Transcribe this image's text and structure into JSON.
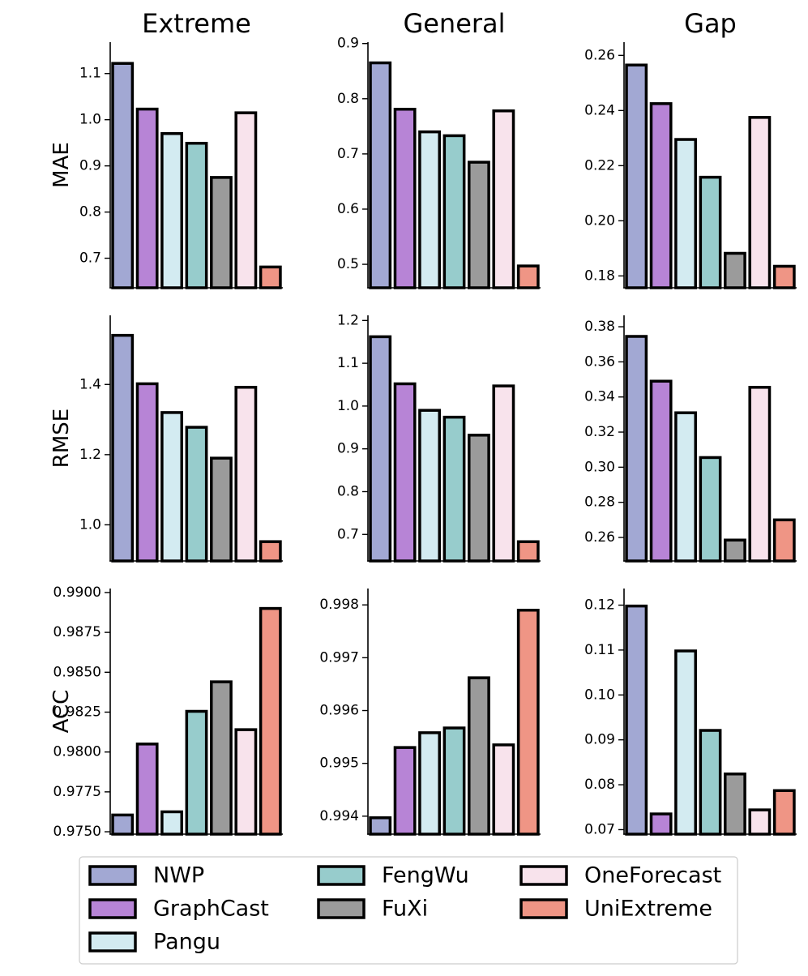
{
  "chart_data": {
    "type": "bar",
    "columns": [
      "Extreme",
      "General",
      "Gap"
    ],
    "rows": [
      "MAE",
      "RMSE",
      "ACC"
    ],
    "models": [
      {
        "name": "NWP",
        "color": "#a2a8d3"
      },
      {
        "name": "GraphCast",
        "color": "#b784d6"
      },
      {
        "name": "Pangu",
        "color": "#d3ebf1"
      },
      {
        "name": "FengWu",
        "color": "#97cccc"
      },
      {
        "name": "FuXi",
        "color": "#9b9b9b"
      },
      {
        "name": "OneForecast",
        "color": "#f8e3ec"
      },
      {
        "name": "UniExtreme",
        "color": "#ef9585"
      }
    ],
    "panels": [
      {
        "row": "MAE",
        "column": "Extreme",
        "ylim": [
          0.636,
          1.168
        ],
        "ticks": [
          "0.7",
          "0.8",
          "0.9",
          "1.0",
          "1.1"
        ],
        "values": [
          1.122,
          1.023,
          0.97,
          0.949,
          0.875,
          1.015,
          0.681
        ]
      },
      {
        "row": "MAE",
        "column": "General",
        "ylim": [
          0.4575,
          0.9025
        ],
        "ticks": [
          "0.5",
          "0.6",
          "0.7",
          "0.8",
          "0.9"
        ],
        "values": [
          0.865,
          0.781,
          0.74,
          0.733,
          0.685,
          0.778,
          0.497
        ]
      },
      {
        "row": "MAE",
        "column": "Gap",
        "ylim": [
          0.1757,
          0.2648
        ],
        "ticks": [
          "0.18",
          "0.20",
          "0.22",
          "0.24",
          "0.26"
        ],
        "values": [
          0.2565,
          0.2425,
          0.2295,
          0.2158,
          0.1882,
          0.2375,
          0.1835
        ]
      },
      {
        "row": "RMSE",
        "column": "Extreme",
        "ylim": [
          0.897,
          1.597
        ],
        "ticks": [
          "1.0",
          "1.2",
          "1.4"
        ],
        "values": [
          1.54,
          1.402,
          1.32,
          1.278,
          1.19,
          1.392,
          0.952
        ]
      },
      {
        "row": "RMSE",
        "column": "General",
        "ylim": [
          0.638,
          1.212
        ],
        "ticks": [
          "0.7",
          "0.8",
          "0.9",
          "1.0",
          "1.1",
          "1.2"
        ],
        "values": [
          1.162,
          1.052,
          0.99,
          0.974,
          0.932,
          1.047,
          0.683
        ]
      },
      {
        "row": "RMSE",
        "column": "Gap",
        "ylim": [
          0.2466,
          0.3865
        ],
        "ticks": [
          "0.26",
          "0.28",
          "0.30",
          "0.32",
          "0.34",
          "0.36",
          "0.38"
        ],
        "values": [
          0.3745,
          0.349,
          0.331,
          0.3055,
          0.2585,
          0.3455,
          0.27
        ]
      },
      {
        "row": "ACC",
        "column": "Extreme",
        "ylim": [
          0.97485,
          0.99025
        ],
        "ticks": [
          "0.9750",
          "0.9775",
          "0.9800",
          "0.9825",
          "0.9850",
          "0.9875",
          "0.9900"
        ],
        "values": [
          0.97605,
          0.9805,
          0.97625,
          0.98255,
          0.9844,
          0.9814,
          0.989
        ]
      },
      {
        "row": "ACC",
        "column": "General",
        "ylim": [
          0.99366,
          0.99831
        ],
        "ticks": [
          "0.994",
          "0.995",
          "0.996",
          "0.997",
          "0.998"
        ],
        "values": [
          0.99397,
          0.9953,
          0.99558,
          0.99567,
          0.99662,
          0.99535,
          0.9979
        ]
      },
      {
        "row": "ACC",
        "column": "Gap",
        "ylim": [
          0.069,
          0.1237
        ],
        "ticks": [
          "0.07",
          "0.08",
          "0.09",
          "0.10",
          "0.11",
          "0.12"
        ],
        "values": [
          0.1198,
          0.0735,
          0.1098,
          0.0921,
          0.0824,
          0.0744,
          0.0787
        ]
      }
    ],
    "legend": {
      "location": "bottom-center",
      "columns": 3
    }
  }
}
